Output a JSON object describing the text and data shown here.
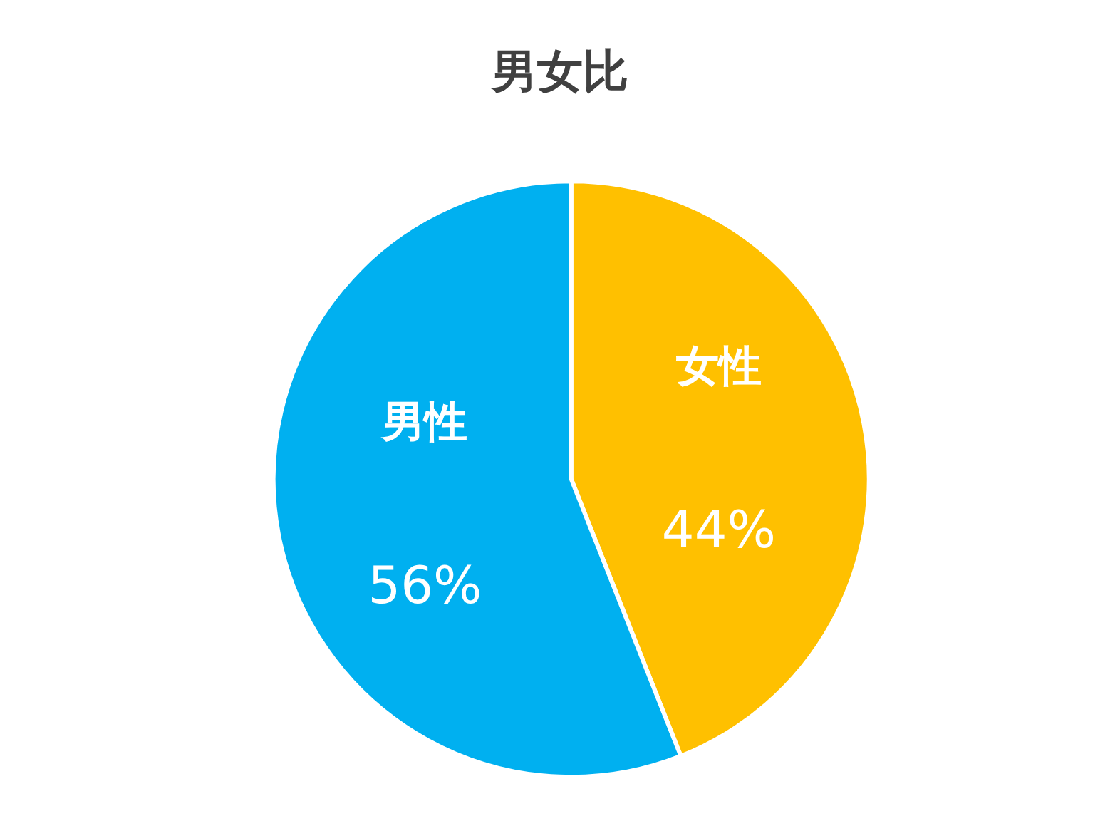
{
  "chart_data": {
    "type": "pie",
    "title": "男女比",
    "categories": [
      "女性",
      "男性"
    ],
    "values": [
      44,
      56
    ],
    "colors": [
      "#ffc000",
      "#00b0f0"
    ],
    "value_labels": [
      "44%",
      "56%"
    ],
    "legend": false
  }
}
